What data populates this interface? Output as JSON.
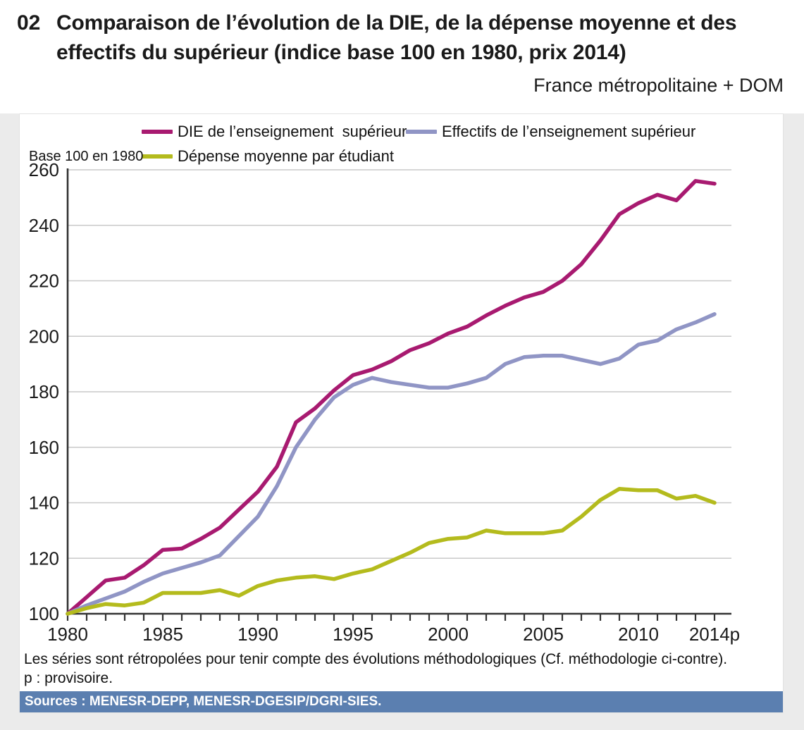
{
  "header": {
    "number": "02",
    "title_line1": "Comparaison de l’évolution de la DIE, de la dépense moyenne et des",
    "title_line2": "effectifs du supérieur (indice base 100 en 1980, prix 2014)",
    "region_note": "France métropolitaine + DOM"
  },
  "chart_data": {
    "type": "line",
    "title": "Comparaison de l’évolution de la DIE, de la dépense moyenne et des effectifs du supérieur (indice base 100 en 1980, prix 2014)",
    "axis_note": "Base 100 en 1980",
    "grid": true,
    "legend_position": "top",
    "ylim": [
      100,
      260
    ],
    "y_ticks": [
      100,
      120,
      140,
      160,
      180,
      200,
      220,
      240,
      260
    ],
    "x": [
      1980,
      1981,
      1982,
      1983,
      1984,
      1985,
      1986,
      1987,
      1988,
      1989,
      1990,
      1991,
      1992,
      1993,
      1994,
      1995,
      1996,
      1997,
      1998,
      1999,
      2000,
      2001,
      2002,
      2003,
      2004,
      2005,
      2006,
      2007,
      2008,
      2009,
      2010,
      2011,
      2012,
      2013,
      2014
    ],
    "x_tick_labels": [
      {
        "label": "1980",
        "year": 1980
      },
      {
        "label": "1985",
        "year": 1985
      },
      {
        "label": "1990",
        "year": 1990
      },
      {
        "label": "1995",
        "year": 1995
      },
      {
        "label": "2000",
        "year": 2000
      },
      {
        "label": "2005",
        "year": 2005
      },
      {
        "label": "2010",
        "year": 2010
      },
      {
        "label": "2014p",
        "year": 2014
      }
    ],
    "series": [
      {
        "name": "DIE de l’enseignement  supérieur",
        "color": "#a81a70",
        "values": [
          100,
          106,
          112,
          113,
          117.5,
          123,
          123.5,
          127,
          131,
          137.5,
          144,
          153,
          169,
          174,
          180.5,
          186,
          188,
          191,
          195,
          197.5,
          201,
          203.5,
          207.5,
          211,
          214,
          216,
          220,
          226,
          234.5,
          244,
          248,
          251,
          249,
          256,
          255
        ]
      },
      {
        "name": "Effectifs de l’enseignement supérieur",
        "color": "#9095c5",
        "values": [
          100,
          103,
          105.5,
          108,
          111.5,
          114.5,
          116.5,
          118.5,
          121,
          128,
          135,
          146,
          160,
          170,
          178,
          182.5,
          185,
          183.5,
          182.5,
          181.5,
          181.5,
          183,
          185,
          190,
          192.5,
          193,
          193,
          191.5,
          190,
          192,
          197,
          198.5,
          202.5,
          205,
          208
        ]
      },
      {
        "name": "Dépense moyenne par étudiant",
        "color": "#b4bb1d",
        "values": [
          100,
          102,
          103.5,
          103,
          104,
          107.5,
          107.5,
          107.5,
          108.5,
          106.5,
          110,
          112,
          113,
          113.5,
          112.5,
          114.5,
          116,
          119,
          122,
          125.5,
          127,
          127.5,
          130,
          129,
          129,
          129,
          130,
          135,
          141,
          145,
          144.5,
          144.5,
          141.5,
          142.5,
          140
        ]
      }
    ]
  },
  "notes": {
    "line1": "Les séries sont rétropolées pour tenir compte des évolutions méthodologiques (Cf. méthodologie ci-contre).",
    "line2": "p : provisoire."
  },
  "source_bar": {
    "text": "Sources : MENESR-DEPP, MENESR-DGESIP/DGRI-SIES."
  },
  "colors": {
    "source_bar_bg": "#5b7fb0",
    "grid_line": "#c9c9c9",
    "axis_line": "#333333",
    "page_margin": "#ebebeb",
    "text": "#1a1a1a"
  }
}
